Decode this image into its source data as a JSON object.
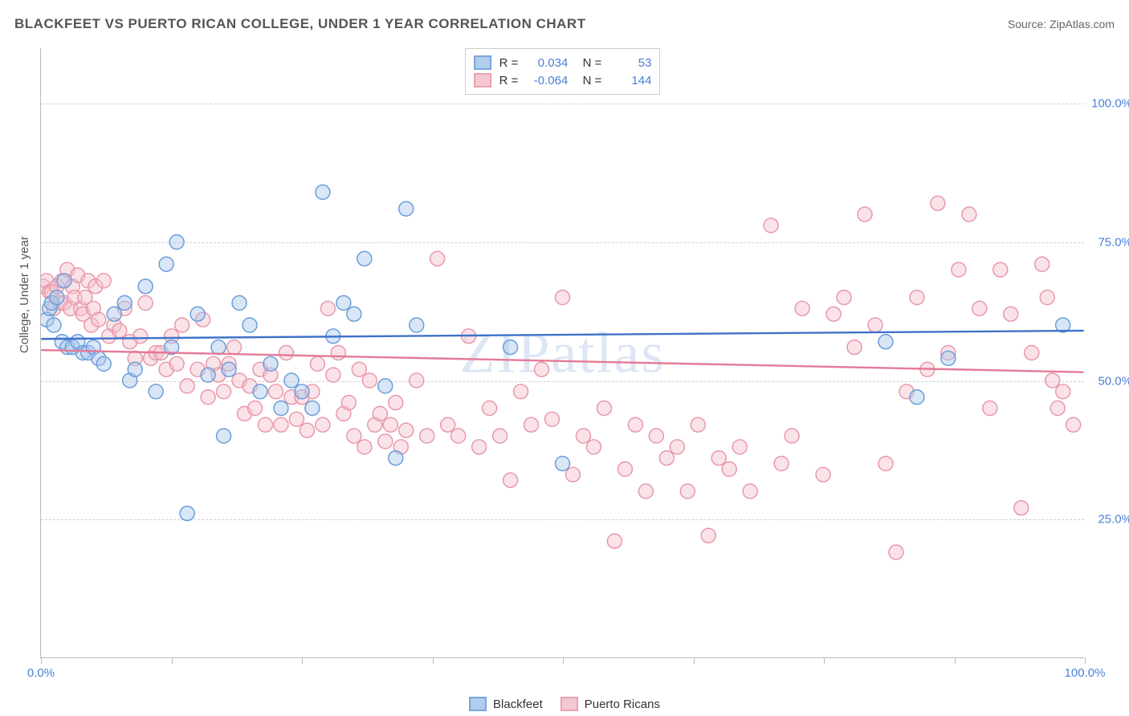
{
  "title": "BLACKFEET VS PUERTO RICAN COLLEGE, UNDER 1 YEAR CORRELATION CHART",
  "source_label": "Source: ZipAtlas.com",
  "y_axis_title": "College, Under 1 year",
  "watermark": "ZIPatlas",
  "chart": {
    "type": "scatter",
    "background_color": "#ffffff",
    "grid_color": "#d0d0d0",
    "border_color": "#bbbbbb",
    "xlim": [
      0,
      100
    ],
    "ylim": [
      0,
      110
    ],
    "yticks": [
      25,
      50,
      75,
      100
    ],
    "ytick_labels": [
      "25.0%",
      "50.0%",
      "75.0%",
      "100.0%"
    ],
    "ytick_color": "#4a7fd6",
    "xticks": [
      0,
      12.5,
      25,
      37.5,
      50,
      62.5,
      75,
      87.5,
      100
    ],
    "xaxis_end_labels": {
      "left": "0.0%",
      "right": "100.0%"
    },
    "marker_radius": 9,
    "marker_opacity": 0.45,
    "regression_line_width": 2.4,
    "series": [
      {
        "name": "Blackfeet",
        "fill_color": "#a9c7ec",
        "stroke_color": "#6b9ddb",
        "line_color": "#3f72c9",
        "R": "0.034",
        "N": "53",
        "regression": {
          "y_at_x0": 57.5,
          "y_at_x100": 59.0
        },
        "points": [
          [
            0.5,
            61
          ],
          [
            0.8,
            63
          ],
          [
            1,
            64
          ],
          [
            1.2,
            60
          ],
          [
            1.5,
            65
          ],
          [
            2,
            57
          ],
          [
            2.2,
            68
          ],
          [
            2.5,
            56
          ],
          [
            3,
            56
          ],
          [
            3.5,
            57
          ],
          [
            4,
            55
          ],
          [
            4.5,
            55
          ],
          [
            5,
            56
          ],
          [
            5.5,
            54
          ],
          [
            6,
            53
          ],
          [
            7,
            62
          ],
          [
            8,
            64
          ],
          [
            8.5,
            50
          ],
          [
            9,
            52
          ],
          [
            10,
            67
          ],
          [
            11,
            48
          ],
          [
            12,
            71
          ],
          [
            12.5,
            56
          ],
          [
            13,
            75
          ],
          [
            14,
            26
          ],
          [
            15,
            62
          ],
          [
            16,
            51
          ],
          [
            17,
            56
          ],
          [
            17.5,
            40
          ],
          [
            18,
            52
          ],
          [
            19,
            64
          ],
          [
            20,
            60
          ],
          [
            21,
            48
          ],
          [
            22,
            53
          ],
          [
            23,
            45
          ],
          [
            24,
            50
          ],
          [
            25,
            48
          ],
          [
            26,
            45
          ],
          [
            27,
            84
          ],
          [
            28,
            58
          ],
          [
            29,
            64
          ],
          [
            30,
            62
          ],
          [
            31,
            72
          ],
          [
            33,
            49
          ],
          [
            34,
            36
          ],
          [
            35,
            81
          ],
          [
            36,
            60
          ],
          [
            45,
            56
          ],
          [
            50,
            35
          ],
          [
            81,
            57
          ],
          [
            84,
            47
          ],
          [
            87,
            54
          ],
          [
            98,
            60
          ]
        ]
      },
      {
        "name": "Puerto Ricans",
        "fill_color": "#f4c2cd",
        "stroke_color": "#e898ab",
        "line_color": "#e37a96",
        "R": "-0.064",
        "N": "144",
        "regression": {
          "y_at_x0": 55.5,
          "y_at_x100": 51.5
        },
        "points": [
          [
            0.2,
            67
          ],
          [
            0.5,
            68
          ],
          [
            0.8,
            66
          ],
          [
            1,
            66
          ],
          [
            1.2,
            63
          ],
          [
            1.5,
            67
          ],
          [
            1.8,
            64
          ],
          [
            2,
            68
          ],
          [
            2.2,
            64
          ],
          [
            2.5,
            70
          ],
          [
            2.8,
            63
          ],
          [
            3,
            67
          ],
          [
            3.2,
            65
          ],
          [
            3.5,
            69
          ],
          [
            3.8,
            63
          ],
          [
            4,
            62
          ],
          [
            4.2,
            65
          ],
          [
            4.5,
            68
          ],
          [
            4.8,
            60
          ],
          [
            5,
            63
          ],
          [
            5.2,
            67
          ],
          [
            5.5,
            61
          ],
          [
            6,
            68
          ],
          [
            6.5,
            58
          ],
          [
            7,
            60
          ],
          [
            7.5,
            59
          ],
          [
            8,
            63
          ],
          [
            8.5,
            57
          ],
          [
            9,
            54
          ],
          [
            9.5,
            58
          ],
          [
            10,
            64
          ],
          [
            10.5,
            54
          ],
          [
            11,
            55
          ],
          [
            11.5,
            55
          ],
          [
            12,
            52
          ],
          [
            12.5,
            58
          ],
          [
            13,
            53
          ],
          [
            13.5,
            60
          ],
          [
            14,
            49
          ],
          [
            15,
            52
          ],
          [
            15.5,
            61
          ],
          [
            16,
            47
          ],
          [
            16.5,
            53
          ],
          [
            17,
            51
          ],
          [
            17.5,
            48
          ],
          [
            18,
            53
          ],
          [
            18.5,
            56
          ],
          [
            19,
            50
          ],
          [
            19.5,
            44
          ],
          [
            20,
            49
          ],
          [
            20.5,
            45
          ],
          [
            21,
            52
          ],
          [
            21.5,
            42
          ],
          [
            22,
            51
          ],
          [
            22.5,
            48
          ],
          [
            23,
            42
          ],
          [
            23.5,
            55
          ],
          [
            24,
            47
          ],
          [
            24.5,
            43
          ],
          [
            25,
            47
          ],
          [
            25.5,
            41
          ],
          [
            26,
            48
          ],
          [
            26.5,
            53
          ],
          [
            27,
            42
          ],
          [
            27.5,
            63
          ],
          [
            28,
            51
          ],
          [
            28.5,
            55
          ],
          [
            29,
            44
          ],
          [
            29.5,
            46
          ],
          [
            30,
            40
          ],
          [
            30.5,
            52
          ],
          [
            31,
            38
          ],
          [
            31.5,
            50
          ],
          [
            32,
            42
          ],
          [
            32.5,
            44
          ],
          [
            33,
            39
          ],
          [
            33.5,
            42
          ],
          [
            34,
            46
          ],
          [
            34.5,
            38
          ],
          [
            35,
            41
          ],
          [
            36,
            50
          ],
          [
            37,
            40
          ],
          [
            38,
            72
          ],
          [
            39,
            42
          ],
          [
            40,
            40
          ],
          [
            41,
            58
          ],
          [
            42,
            38
          ],
          [
            43,
            45
          ],
          [
            44,
            40
          ],
          [
            45,
            32
          ],
          [
            46,
            48
          ],
          [
            47,
            42
          ],
          [
            48,
            52
          ],
          [
            49,
            43
          ],
          [
            50,
            65
          ],
          [
            51,
            33
          ],
          [
            52,
            40
          ],
          [
            53,
            38
          ],
          [
            54,
            45
          ],
          [
            55,
            21
          ],
          [
            56,
            34
          ],
          [
            57,
            42
          ],
          [
            58,
            30
          ],
          [
            59,
            40
          ],
          [
            60,
            36
          ],
          [
            61,
            38
          ],
          [
            62,
            30
          ],
          [
            63,
            42
          ],
          [
            64,
            22
          ],
          [
            65,
            36
          ],
          [
            66,
            34
          ],
          [
            67,
            38
          ],
          [
            68,
            30
          ],
          [
            70,
            78
          ],
          [
            71,
            35
          ],
          [
            72,
            40
          ],
          [
            73,
            63
          ],
          [
            75,
            33
          ],
          [
            76,
            62
          ],
          [
            77,
            65
          ],
          [
            78,
            56
          ],
          [
            79,
            80
          ],
          [
            80,
            60
          ],
          [
            81,
            35
          ],
          [
            82,
            19
          ],
          [
            83,
            48
          ],
          [
            84,
            65
          ],
          [
            85,
            52
          ],
          [
            86,
            82
          ],
          [
            87,
            55
          ],
          [
            88,
            70
          ],
          [
            89,
            80
          ],
          [
            90,
            63
          ],
          [
            91,
            45
          ],
          [
            92,
            70
          ],
          [
            93,
            62
          ],
          [
            94,
            27
          ],
          [
            95,
            55
          ],
          [
            96,
            71
          ],
          [
            96.5,
            65
          ],
          [
            97,
            50
          ],
          [
            97.5,
            45
          ],
          [
            98,
            48
          ],
          [
            99,
            42
          ]
        ]
      }
    ]
  },
  "legend_bottom": [
    {
      "label": "Blackfeet",
      "fill": "#a9c7ec",
      "stroke": "#6b9ddb"
    },
    {
      "label": "Puerto Ricans",
      "fill": "#f4c2cd",
      "stroke": "#e898ab"
    }
  ]
}
